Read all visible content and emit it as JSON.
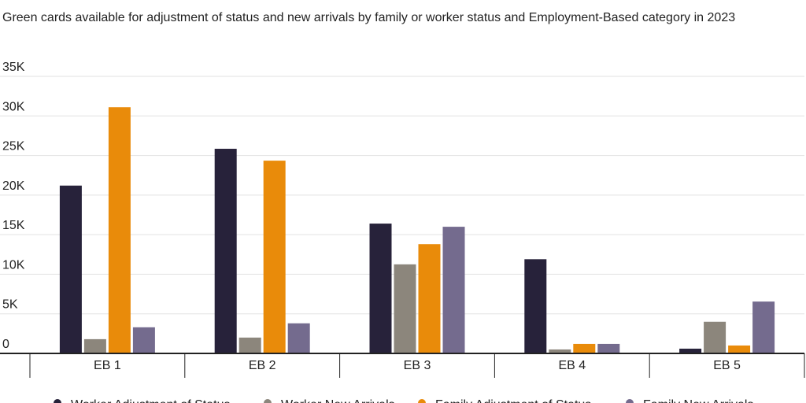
{
  "chart_data": {
    "type": "bar",
    "subtitle": "Green cards available for adjustment of status and new arrivals by family or worker status and Employment-Based category in 2023",
    "categories": [
      "EB 1",
      "EB 2",
      "EB 3",
      "EB 4",
      "EB 5"
    ],
    "series": [
      {
        "name": "Worker Adjustment of Status",
        "color": "#27223a",
        "values": [
          21200,
          25850,
          16400,
          11900,
          600
        ]
      },
      {
        "name": "Worker New Arrivals",
        "color": "#8c867c",
        "values": [
          1800,
          2000,
          11250,
          500,
          4000
        ]
      },
      {
        "name": "Family Adjustment of Status",
        "color": "#e98b0a",
        "values": [
          31100,
          24350,
          13800,
          1200,
          1000
        ]
      },
      {
        "name": "Family New Arrivals",
        "color": "#746b8e",
        "values": [
          3300,
          3800,
          16000,
          1200,
          6550
        ]
      }
    ],
    "ylim": [
      0,
      35000
    ],
    "yticks": [
      0,
      {
        "value": 5000,
        "label": "5K"
      },
      {
        "value": 10000,
        "label": "10K"
      },
      {
        "value": 15000,
        "label": "15K"
      },
      {
        "value": 20000,
        "label": "20K"
      },
      {
        "value": 25000,
        "label": "25K"
      },
      {
        "value": 30000,
        "label": "30K"
      },
      {
        "value": 35000,
        "label": "35K"
      }
    ],
    "grid": true,
    "legend": "bottom"
  }
}
